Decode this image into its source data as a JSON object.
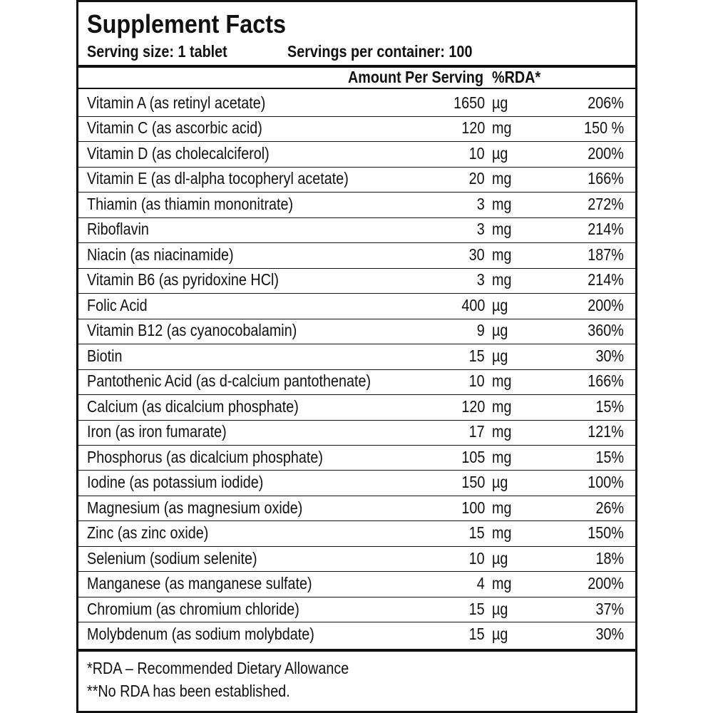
{
  "header": {
    "title": "Supplement Facts",
    "serving_size": "Serving size: 1 tablet",
    "servings_per_container": "Servings per container: 100"
  },
  "table": {
    "columns": [
      "Amount Per Serving",
      "%RDA*"
    ],
    "rows": [
      [
        "Vitamin A (as retinyl acetate)",
        "1650",
        "µg",
        "206%"
      ],
      [
        "Vitamin C (as ascorbic acid)",
        "120",
        "mg",
        "150 %"
      ],
      [
        "Vitamin D (as cholecalciferol)",
        "10",
        "µg",
        "200%"
      ],
      [
        "Vitamin E (as dl-alpha tocopheryl acetate)",
        "20",
        "mg",
        "166%"
      ],
      [
        "Thiamin (as thiamin mononitrate)",
        "3",
        "mg",
        "272%"
      ],
      [
        "Riboflavin",
        "3",
        "mg",
        "214%"
      ],
      [
        "Niacin (as niacinamide)",
        "30",
        "mg",
        "187%"
      ],
      [
        "Vitamin B6 (as pyridoxine HCl)",
        "3",
        "mg",
        "214%"
      ],
      [
        "Folic Acid",
        "400",
        "µg",
        "200%"
      ],
      [
        "Vitamin B12 (as cyanocobalamin)",
        "9",
        "µg",
        "360%"
      ],
      [
        "Biotin",
        "15",
        "µg",
        "30%"
      ],
      [
        "Pantothenic Acid (as d-calcium pantothenate)",
        "10",
        "mg",
        "166%"
      ],
      [
        "Calcium (as dicalcium phosphate)",
        "120",
        "mg",
        "15%"
      ],
      [
        "Iron (as iron fumarate)",
        "17",
        "mg",
        "121%"
      ],
      [
        "Phosphorus (as dicalcium phosphate)",
        "105",
        "mg",
        "15%"
      ],
      [
        "Iodine (as potassium iodide)",
        "150",
        "µg",
        "100%"
      ],
      [
        "Magnesium (as magnesium oxide)",
        "100",
        "mg",
        "26%"
      ],
      [
        "Zinc (as zinc oxide)",
        "15",
        "mg",
        "150%"
      ],
      [
        "Selenium (sodium selenite)",
        "10",
        "µg",
        "18%"
      ],
      [
        "Manganese (as manganese sulfate)",
        "4",
        "mg",
        "200%"
      ],
      [
        "Chromium (as chromium chloride)",
        "15",
        "µg",
        "37%"
      ],
      [
        "Molybdenum (as sodium molybdate)",
        "15",
        "µg",
        "30%"
      ]
    ]
  },
  "footer": {
    "notes": [
      "*RDA – Recommended Dietary Allowance",
      "**No RDA has been established."
    ]
  }
}
